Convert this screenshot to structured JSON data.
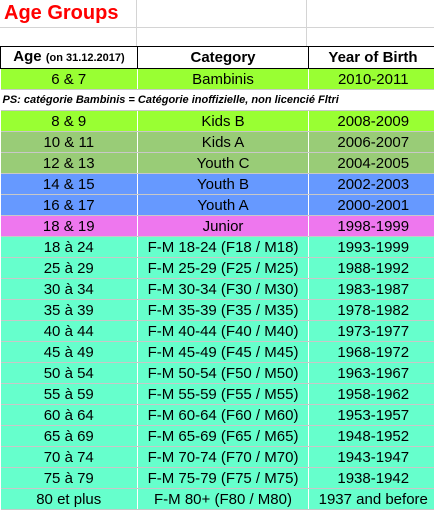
{
  "title": "Age Groups",
  "header": {
    "age": "Age",
    "age_note": "(on 31.12.2017)",
    "category": "Category",
    "year": "Year of Birth"
  },
  "colors": {
    "bambinis": "#99ff33",
    "kids_b": "#99ff33",
    "kids_a": "#99cc77",
    "youth_c": "#99cc77",
    "youth_b": "#6699ff",
    "youth_a": "#6699ff",
    "junior": "#ee77ee",
    "adult": "#66ffcc"
  },
  "rows": [
    {
      "age": "6 & 7",
      "category": "Bambinis",
      "year": "2010-2011",
      "color": "#99ff33"
    },
    {
      "note": "PS: catégorie Bambinis = Catégorie inoffizielle, non licencié Fltri"
    },
    {
      "age": "8 & 9",
      "category": "Kids B",
      "year": "2008-2009",
      "color": "#99ff33"
    },
    {
      "age": "10 & 11",
      "category": "Kids A",
      "year": "2006-2007",
      "color": "#99cc77"
    },
    {
      "age": "12 & 13",
      "category": "Youth C",
      "year": "2004-2005",
      "color": "#99cc77"
    },
    {
      "age": "14 & 15",
      "category": "Youth B",
      "year": "2002-2003",
      "color": "#6699ff"
    },
    {
      "age": "16 & 17",
      "category": "Youth A",
      "year": "2000-2001",
      "color": "#6699ff"
    },
    {
      "age": "18 & 19",
      "category": "Junior",
      "year": "1998-1999",
      "color": "#ee77ee"
    },
    {
      "age": "18 à 24",
      "category": "F-M 18-24 (F18 / M18)",
      "year": "1993-1999",
      "color": "#66ffcc"
    },
    {
      "age": "25 à 29",
      "category": "F-M 25-29 (F25 / M25)",
      "year": "1988-1992",
      "color": "#66ffcc"
    },
    {
      "age": "30 à 34",
      "category": "F-M 30-34 (F30 / M30)",
      "year": "1983-1987",
      "color": "#66ffcc"
    },
    {
      "age": "35 à 39",
      "category": "F-M 35-39 (F35 / M35)",
      "year": "1978-1982",
      "color": "#66ffcc"
    },
    {
      "age": "40 à 44",
      "category": "F-M 40-44 (F40 / M40)",
      "year": "1973-1977",
      "color": "#66ffcc"
    },
    {
      "age": "45 à 49",
      "category": "F-M 45-49 (F45 / M45)",
      "year": "1968-1972",
      "color": "#66ffcc"
    },
    {
      "age": "50 à 54",
      "category": "F-M 50-54 (F50 / M50)",
      "year": "1963-1967",
      "color": "#66ffcc"
    },
    {
      "age": "55 à 59",
      "category": "F-M 55-59 (F55 / M55)",
      "year": "1958-1962",
      "color": "#66ffcc"
    },
    {
      "age": "60 à 64",
      "category": "F-M 60-64 (F60 / M60)",
      "year": "1953-1957",
      "color": "#66ffcc"
    },
    {
      "age": "65 à 69",
      "category": "F-M 65-69 (F65 / M65)",
      "year": "1948-1952",
      "color": "#66ffcc"
    },
    {
      "age": "70 à 74",
      "category": "F-M 70-74 (F70 / M70)",
      "year": "1943-1947",
      "color": "#66ffcc"
    },
    {
      "age": "75 à 79",
      "category": "F-M 75-79 (F75 / M75)",
      "year": "1938-1942",
      "color": "#66ffcc"
    },
    {
      "age": "80 et plus",
      "category": "F-M 80+ (F80 / M80)",
      "year": "1937 and before",
      "color": "#66ffcc"
    }
  ]
}
